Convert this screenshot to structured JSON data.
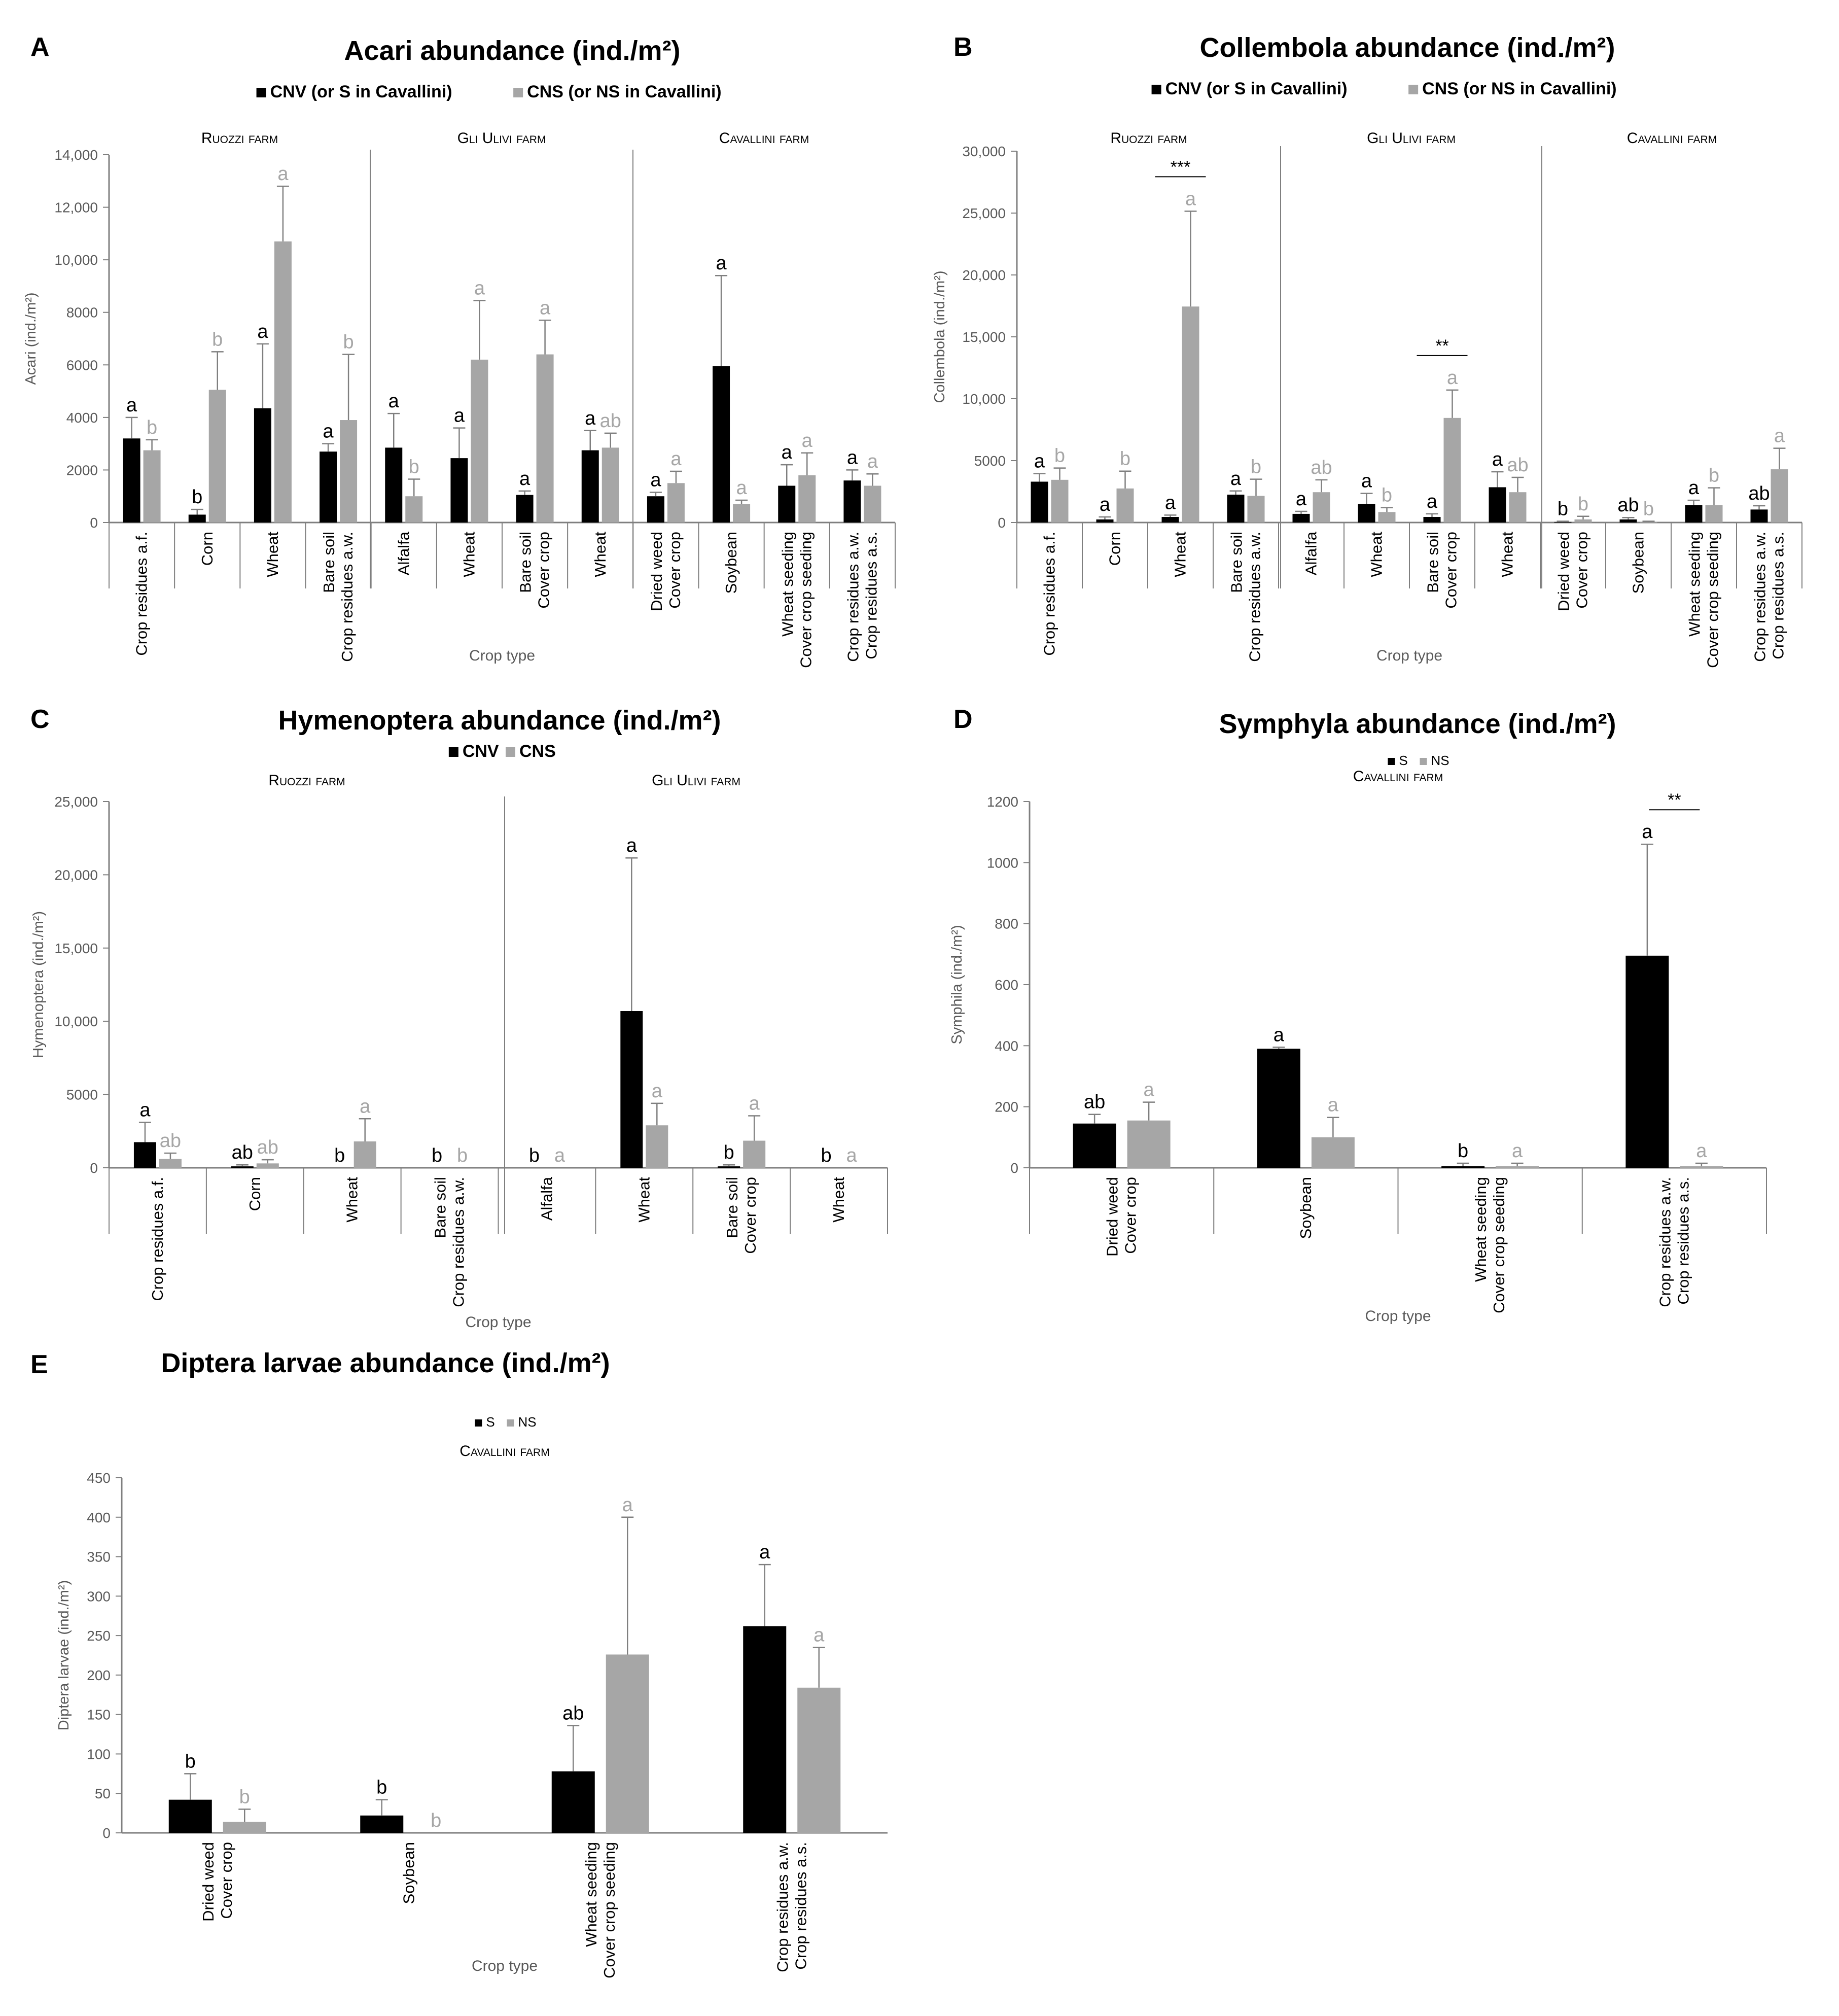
{
  "colors": {
    "series1": "#000000",
    "series2": "#a6a6a6",
    "axis": "#7f7f7f",
    "text": "#000000",
    "tick": "#595959"
  },
  "chart_data": [
    {
      "id": "A",
      "type": "bar",
      "panel_label": "A",
      "title": "Acari abundance (ind./m²)",
      "legend": [
        "CNV (or S in Cavallini)",
        "CNS (or NS in Cavallini)"
      ],
      "ylabel": "Acari (ind./m²)",
      "xlabel": "Crop type",
      "ylim": [
        0,
        14000
      ],
      "yticks": [
        "0",
        "2000",
        "4000",
        "6000",
        "8000",
        "10,000",
        "12,000",
        "14,000"
      ],
      "groups": [
        "Ruozzi farm",
        "Gli Ulivi farm",
        "Cavallini farm"
      ],
      "categories": [
        [
          "Crop residues a.f."
        ],
        [
          "Corn"
        ],
        [
          "Wheat"
        ],
        [
          "Bare soil",
          "Crop residues a.w."
        ],
        [
          "Alfalfa"
        ],
        [
          "Wheat"
        ],
        [
          "Bare soil",
          "Cover crop"
        ],
        [
          "Wheat"
        ],
        [
          "Dried weed",
          "Cover crop"
        ],
        [
          "Soybean"
        ],
        [
          "Wheat seeding",
          "Cover crop seeding"
        ],
        [
          "Crop residues a.w.",
          "Crop residues a.s."
        ]
      ],
      "series": [
        {
          "name": "CNV (or S in Cavallini)",
          "values": [
            3200,
            300,
            4350,
            2700,
            2850,
            2450,
            1050,
            2750,
            1000,
            5950,
            1400,
            1600
          ],
          "errors": [
            800,
            200,
            2450,
            300,
            1300,
            1150,
            150,
            750,
            150,
            3450,
            800,
            400
          ],
          "letters": [
            "a",
            "b",
            "a",
            "a",
            "a",
            "a",
            "a",
            "a",
            "a",
            "a",
            "a",
            "a"
          ]
        },
        {
          "name": "CNS (or NS in Cavallini)",
          "values": [
            2750,
            5050,
            10700,
            3900,
            1000,
            6200,
            6400,
            2850,
            1500,
            700,
            1800,
            1400
          ],
          "errors": [
            400,
            1450,
            2100,
            2500,
            650,
            2250,
            1300,
            550,
            450,
            150,
            850,
            450
          ],
          "letters": [
            "b",
            "b",
            "a",
            "b",
            "b",
            "a",
            "a",
            "ab",
            "a",
            "a",
            "a",
            "a"
          ]
        }
      ],
      "significance": []
    },
    {
      "id": "B",
      "type": "bar",
      "panel_label": "B",
      "title": "Collembola abundance (ind./m²)",
      "legend": [
        "CNV (or S in Cavallini)",
        "CNS (or NS in Cavallini)"
      ],
      "ylabel": "Collembola (ind./m²)",
      "xlabel": "Crop type",
      "ylim": [
        0,
        30000
      ],
      "yticks": [
        "0",
        "5000",
        "10,000",
        "15,000",
        "20,000",
        "25,000",
        "30,000"
      ],
      "groups": [
        "Ruozzi farm",
        "Gli Ulivi farm",
        "Cavallini farm"
      ],
      "categories": [
        [
          "Crop residues a.f."
        ],
        [
          "Corn"
        ],
        [
          "Wheat"
        ],
        [
          "Bare soil",
          "Crop residues a.w."
        ],
        [
          "Alfalfa"
        ],
        [
          "Wheat"
        ],
        [
          "Bare soil",
          "Cover crop"
        ],
        [
          "Wheat"
        ],
        [
          "Dried weed",
          "Cover crop"
        ],
        [
          "Soybean"
        ],
        [
          "Wheat seeding",
          "Cover crop seeding"
        ],
        [
          "Crop residues a.w.",
          "Crop residues a.s."
        ]
      ],
      "series": [
        {
          "name": "CNV (or S in Cavallini)",
          "values": [
            3300,
            250,
            450,
            2250,
            700,
            1500,
            450,
            2850,
            50,
            250,
            1400,
            1050
          ],
          "errors": [
            650,
            200,
            150,
            300,
            200,
            850,
            250,
            1250,
            50,
            150,
            400,
            300
          ],
          "letters": [
            "a",
            "a",
            "a",
            "a",
            "a",
            "a",
            "a",
            "a",
            "b",
            "ab",
            "a",
            "ab"
          ]
        },
        {
          "name": "CNS (or NS in Cavallini)",
          "values": [
            3450,
            2750,
            17450,
            2150,
            2450,
            850,
            8450,
            2450,
            250,
            50,
            1400,
            4300
          ],
          "errors": [
            950,
            1400,
            7700,
            1350,
            1000,
            350,
            2250,
            1200,
            250,
            50,
            1400,
            1700
          ],
          "letters": [
            "b",
            "b",
            "a",
            "b",
            "ab",
            "b",
            "a",
            "ab",
            "b",
            "b",
            "b",
            "a"
          ]
        }
      ],
      "significance": [
        {
          "category": 2,
          "label": "***"
        },
        {
          "category": 6,
          "label": "**"
        }
      ]
    },
    {
      "id": "C",
      "type": "bar",
      "panel_label": "C",
      "title": "Hymenoptera abundance (ind./m²)",
      "legend": [
        "CNV",
        "CNS"
      ],
      "ylabel": "Hymenoptera (ind./m²)",
      "xlabel": "Crop type",
      "ylim": [
        0,
        25000
      ],
      "yticks": [
        "0",
        "5000",
        "10,000",
        "15,000",
        "20,000",
        "25,000"
      ],
      "groups": [
        "Ruozzi farm",
        "Gli Ulivi farm"
      ],
      "categories": [
        [
          "Crop residues a.f."
        ],
        [
          "Corn"
        ],
        [
          "Wheat"
        ],
        [
          "Bare soil",
          "Crop residues a.w."
        ],
        [
          "Alfalfa"
        ],
        [
          "Wheat"
        ],
        [
          "Bare soil",
          "Cover crop"
        ],
        [
          "Wheat"
        ]
      ],
      "series": [
        {
          "name": "CNV",
          "values": [
            1750,
            100,
            0,
            0,
            0,
            10700,
            100,
            0
          ],
          "errors": [
            1350,
            100,
            0,
            0,
            0,
            10450,
            100,
            0
          ],
          "letters": [
            "a",
            "ab",
            "b",
            "b",
            "b",
            "a",
            "b",
            "b"
          ]
        },
        {
          "name": "CNS",
          "values": [
            600,
            300,
            1800,
            0,
            0,
            2900,
            1850,
            0
          ],
          "errors": [
            400,
            250,
            1550,
            0,
            0,
            1500,
            1700,
            0
          ],
          "letters": [
            "ab",
            "ab",
            "a",
            "b",
            "a",
            "a",
            "a",
            "a"
          ]
        }
      ],
      "significance": []
    },
    {
      "id": "D",
      "type": "bar",
      "panel_label": "D",
      "title": "Symphyla abundance (ind./m²)",
      "legend": [
        "S",
        "NS"
      ],
      "ylabel": "Symphila (ind./m²)",
      "xlabel": "Crop type",
      "ylim": [
        0,
        1200
      ],
      "yticks": [
        "0",
        "200",
        "400",
        "600",
        "800",
        "1000",
        "1200"
      ],
      "groups": [
        "Cavallini farm"
      ],
      "categories": [
        [
          "Dried weed",
          "Cover crop"
        ],
        [
          "Soybean"
        ],
        [
          "Wheat seeding",
          "Cover crop seeding"
        ],
        [
          "Crop residues a.w.",
          "Crop residues a.s."
        ]
      ],
      "series": [
        {
          "name": "S",
          "values": [
            145,
            390,
            5,
            695
          ],
          "errors": [
            30,
            5,
            10,
            365
          ],
          "letters": [
            "ab",
            "a",
            "b",
            "a"
          ]
        },
        {
          "name": "NS",
          "values": [
            155,
            100,
            5,
            5
          ],
          "errors": [
            60,
            65,
            10,
            10
          ],
          "letters": [
            "a",
            "a",
            "a",
            "a"
          ]
        }
      ],
      "significance": [
        {
          "category": 3,
          "label": "**"
        }
      ]
    },
    {
      "id": "E",
      "type": "bar",
      "panel_label": "E",
      "title": "Diptera larvae abundance (ind./m²)",
      "legend": [
        "S",
        "NS"
      ],
      "ylabel": "Diptera larvae (ind./m²)",
      "xlabel": "Crop type",
      "ylim": [
        0,
        450
      ],
      "yticks": [
        "0",
        "50",
        "100",
        "150",
        "200",
        "250",
        "300",
        "350",
        "400",
        "450"
      ],
      "groups": [
        "Cavallini farm"
      ],
      "categories": [
        [
          "Dried weed",
          "Cover crop"
        ],
        [
          "Soybean"
        ],
        [
          "Wheat seeding",
          "Cover crop seeding"
        ],
        [
          "Crop residues a.w.",
          "Crop residues a.s."
        ]
      ],
      "series": [
        {
          "name": "S",
          "values": [
            42,
            22,
            78,
            262
          ],
          "errors": [
            33,
            20,
            58,
            78
          ],
          "letters": [
            "b",
            "b",
            "ab",
            "a"
          ]
        },
        {
          "name": "NS",
          "values": [
            14,
            0,
            226,
            184
          ],
          "errors": [
            16,
            0,
            174,
            51
          ],
          "letters": [
            "b",
            "b",
            "a",
            "a"
          ]
        }
      ],
      "significance": []
    }
  ]
}
